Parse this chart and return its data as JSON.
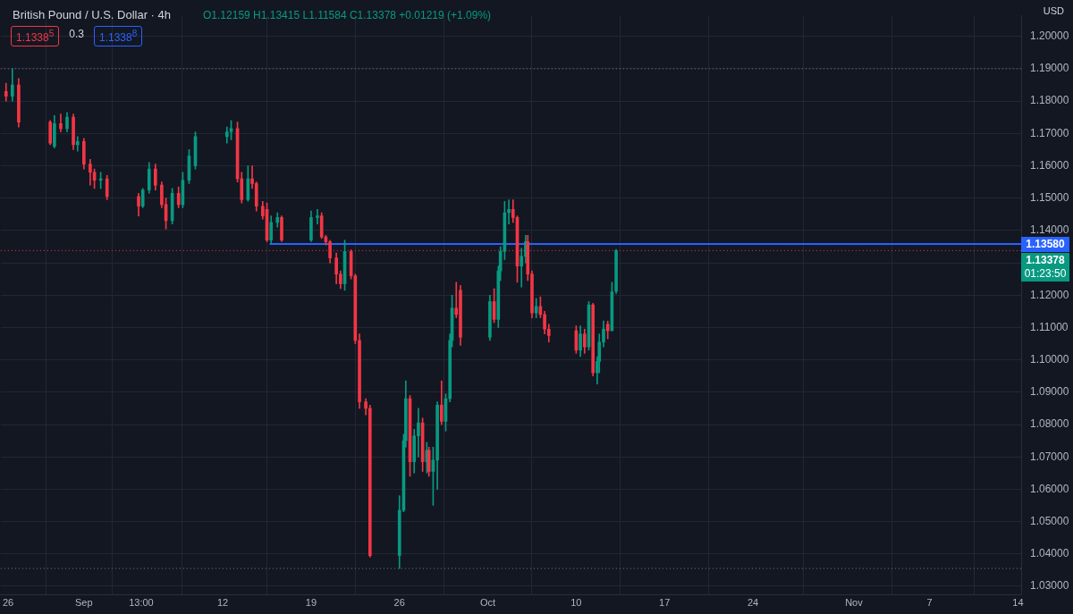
{
  "chart_data": {
    "type": "candlestick",
    "title": "British Pound / U.S. Dollar · 4h",
    "subtitle": "O1.12159 H1.13415 L1.11584 C1.13378 +0.01219 (+1.09%)",
    "ylabel": "USD",
    "x": [
      "--08-25T20:00",
      "--08-26T08:00",
      "--08-26T20:00",
      "--08-29T08:00",
      "--08-29T16:00",
      "--08-30T04:00",
      "--08-30T16:00",
      "--08-31T04:00",
      "--08-31T12:00",
      "--09-01T00:00",
      "--09-01T12:00",
      "--09-01T20:00",
      "--09-02T08:00",
      "--09-02T20:00",
      "--09-05T08:00",
      "--09-05T16:00",
      "--09-06T04:00",
      "--09-06T16:00",
      "--09-07T04:00",
      "--09-07T12:00",
      "--09-08T00:00",
      "--09-08T12:00",
      "--09-08T20:00",
      "--09-09T08:00",
      "--09-09T20:00",
      "--09-12T08:00",
      "--09-12T16:00",
      "--09-13T04:00",
      "--09-13T12:00",
      "--09-14T00:00",
      "--09-14T08:00",
      "--09-14T16:00",
      "--09-15T04:00",
      "--09-15T12:00",
      "--09-15T20:00",
      "--09-16T08:00",
      "--09-16T16:00",
      "--09-19T00:00",
      "--09-19T12:00",
      "--09-19T20:00",
      "--09-20T04:00",
      "--09-20T12:00",
      "--09-21T00:00",
      "--09-21T08:00",
      "--09-21T16:00",
      "--09-22T04:00",
      "--09-22T12:00",
      "--09-22T20:00",
      "--09-23T08:00",
      "--09-23T16:00",
      "--09-26T00:00",
      "--09-26T08:00",
      "--09-26T12:00",
      "--09-26T20:00",
      "--09-27T04:00",
      "--09-27T12:00",
      "--09-27T20:00",
      "--09-28T04:00",
      "--09-28T08:00",
      "--09-28T16:00",
      "--09-29T00:00",
      "--09-29T08:00",
      "--09-29T16:00",
      "--09-30T00:00",
      "--09-30T04:00",
      "--09-30T12:00",
      "--09-30T20:00",
      "--10-03T04:00",
      "--10-03T12:00",
      "--10-03T20:00",
      "--10-04T00:00",
      "--10-04T08:00",
      "--10-04T16:00",
      "--10-05T00:00",
      "--10-05T08:00",
      "--10-05T16:00",
      "--10-06T00:00",
      "--10-06T04:00",
      "--10-06T12:00",
      "--10-06T20:00",
      "--10-07T04:00",
      "--10-07T12:00",
      "--10-07T20:00",
      "--10-10T00:00",
      "--10-10T08:00",
      "--10-10T16:00",
      "--10-11T00:00",
      "--10-11T08:00",
      "--10-11T16:00",
      "--10-11T20:00",
      "--10-12T04:00",
      "--10-12T12:00",
      "--10-12T20:00",
      "--10-13T04:00"
    ],
    "ohlc": [
      [
        1.183,
        1.1855,
        1.18,
        1.1815
      ],
      [
        1.1815,
        1.19,
        1.18,
        1.185
      ],
      [
        1.185,
        1.187,
        1.172,
        1.1735
      ],
      [
        1.1735,
        1.174,
        1.1665,
        1.167
      ],
      [
        1.166,
        1.1755,
        1.1655,
        1.173
      ],
      [
        1.173,
        1.176,
        1.1705,
        1.1715
      ],
      [
        1.1715,
        1.1765,
        1.1705,
        1.175
      ],
      [
        1.175,
        1.176,
        1.165,
        1.1665
      ],
      [
        1.1665,
        1.169,
        1.1645,
        1.1675
      ],
      [
        1.1675,
        1.1685,
        1.159,
        1.1605
      ],
      [
        1.1605,
        1.162,
        1.154,
        1.158
      ],
      [
        1.158,
        1.159,
        1.153,
        1.1555
      ],
      [
        1.1555,
        1.158,
        1.153,
        1.156
      ],
      [
        1.156,
        1.157,
        1.1495,
        1.1505
      ],
      [
        1.1505,
        1.1515,
        1.1445,
        1.1475
      ],
      [
        1.1475,
        1.153,
        1.147,
        1.1525
      ],
      [
        1.1525,
        1.161,
        1.1515,
        1.159
      ],
      [
        1.159,
        1.1605,
        1.1525,
        1.154
      ],
      [
        1.154,
        1.155,
        1.147,
        1.148
      ],
      [
        1.148,
        1.15,
        1.1405,
        1.143
      ],
      [
        1.143,
        1.153,
        1.142,
        1.1515
      ],
      [
        1.1515,
        1.1535,
        1.147,
        1.148
      ],
      [
        1.148,
        1.158,
        1.147,
        1.1555
      ],
      [
        1.1555,
        1.165,
        1.1545,
        1.163
      ],
      [
        1.16,
        1.1705,
        1.159,
        1.169
      ],
      [
        1.169,
        1.172,
        1.167,
        1.1705
      ],
      [
        1.1705,
        1.174,
        1.168,
        1.1715
      ],
      [
        1.1715,
        1.1735,
        1.155,
        1.156
      ],
      [
        1.156,
        1.158,
        1.1485,
        1.1495
      ],
      [
        1.1495,
        1.16,
        1.149,
        1.156
      ],
      [
        1.156,
        1.16,
        1.153,
        1.1545
      ],
      [
        1.1545,
        1.155,
        1.146,
        1.1475
      ],
      [
        1.1475,
        1.149,
        1.1435,
        1.1445
      ],
      [
        1.1465,
        1.1485,
        1.1365,
        1.137
      ],
      [
        1.137,
        1.1445,
        1.136,
        1.1425
      ],
      [
        1.1425,
        1.1455,
        1.141,
        1.144
      ],
      [
        1.144,
        1.1445,
        1.1365,
        1.137
      ],
      [
        1.137,
        1.146,
        1.1365,
        1.144
      ],
      [
        1.144,
        1.1465,
        1.142,
        1.1445
      ],
      [
        1.1445,
        1.1455,
        1.1375,
        1.138
      ],
      [
        1.138,
        1.1385,
        1.1355,
        1.1365
      ],
      [
        1.1365,
        1.137,
        1.13,
        1.1315
      ],
      [
        1.1315,
        1.133,
        1.1235,
        1.1265
      ],
      [
        1.1265,
        1.1275,
        1.122,
        1.1235
      ],
      [
        1.1235,
        1.137,
        1.1215,
        1.1335
      ],
      [
        1.1335,
        1.134,
        1.125,
        1.126
      ],
      [
        1.126,
        1.1265,
        1.105,
        1.106
      ],
      [
        1.106,
        1.108,
        1.085,
        1.087
      ],
      [
        1.087,
        1.088,
        1.083,
        1.085
      ],
      [
        1.085,
        1.086,
        1.039,
        1.0395
      ],
      [
        1.0395,
        1.058,
        1.0355,
        1.0535
      ],
      [
        1.0535,
        1.077,
        1.053,
        1.075
      ],
      [
        1.075,
        1.0935,
        1.073,
        1.088
      ],
      [
        1.088,
        1.089,
        1.064,
        1.0685
      ],
      [
        1.0685,
        1.0785,
        1.065,
        1.0765
      ],
      [
        1.0765,
        1.085,
        1.07,
        1.0805
      ],
      [
        1.0805,
        1.082,
        1.0655,
        1.0685
      ],
      [
        1.0685,
        1.0745,
        1.065,
        1.072
      ],
      [
        1.072,
        1.073,
        1.064,
        1.0655
      ],
      [
        1.0655,
        1.073,
        1.055,
        1.069
      ],
      [
        1.069,
        1.087,
        1.06,
        1.086
      ],
      [
        1.086,
        1.0935,
        1.08,
        1.081
      ],
      [
        1.081,
        1.0895,
        1.078,
        1.088
      ],
      [
        1.088,
        1.108,
        1.087,
        1.106
      ],
      [
        1.106,
        1.12,
        1.104,
        1.116
      ],
      [
        1.116,
        1.124,
        1.113,
        1.114
      ],
      [
        1.1215,
        1.123,
        1.1045,
        1.107
      ],
      [
        1.107,
        1.12,
        1.106,
        1.118
      ],
      [
        1.118,
        1.122,
        1.1115,
        1.1125
      ],
      [
        1.1125,
        1.129,
        1.11,
        1.1275
      ],
      [
        1.1275,
        1.135,
        1.1245,
        1.1335
      ],
      [
        1.1335,
        1.149,
        1.131,
        1.1455
      ],
      [
        1.1455,
        1.1495,
        1.142,
        1.1465
      ],
      [
        1.1465,
        1.1495,
        1.1425,
        1.144
      ],
      [
        1.144,
        1.1445,
        1.124,
        1.129
      ],
      [
        1.129,
        1.1345,
        1.1225,
        1.132
      ],
      [
        1.132,
        1.1385,
        1.13,
        1.1365
      ],
      [
        1.1365,
        1.1385,
        1.1245,
        1.1265
      ],
      [
        1.1265,
        1.1275,
        1.113,
        1.1145
      ],
      [
        1.1145,
        1.119,
        1.113,
        1.1165
      ],
      [
        1.1165,
        1.1195,
        1.113,
        1.114
      ],
      [
        1.114,
        1.115,
        1.108,
        1.1095
      ],
      [
        1.1095,
        1.111,
        1.1055,
        1.1075
      ],
      [
        1.109,
        1.1105,
        1.102,
        1.103
      ],
      [
        1.103,
        1.1105,
        1.101,
        1.108
      ],
      [
        1.108,
        1.1095,
        1.102,
        1.104
      ],
      [
        1.104,
        1.118,
        1.103,
        1.117
      ],
      [
        1.117,
        1.1175,
        1.095,
        1.096
      ],
      [
        1.096,
        1.101,
        1.0925,
        1.0995
      ],
      [
        1.0995,
        1.108,
        1.096,
        1.1055
      ],
      [
        1.1055,
        1.112,
        1.104,
        1.1095
      ],
      [
        1.111,
        1.112,
        1.1065,
        1.109
      ],
      [
        1.109,
        1.124,
        1.109,
        1.121
      ],
      [
        1.1212,
        1.13415,
        1.1205,
        1.13378
      ]
    ],
    "colors": [
      "#f23645",
      "#089981",
      "#f23645",
      "#f23645",
      "#089981",
      "#f23645",
      "#089981",
      "#f23645",
      "#089981",
      "#f23645",
      "#f23645",
      "#f23645",
      "#089981",
      "#f23645",
      "#f23645",
      "#089981",
      "#089981",
      "#f23645",
      "#f23645",
      "#f23645",
      "#089981",
      "#f23645",
      "#089981",
      "#089981",
      "#089981",
      "#089981",
      "#089981",
      "#f23645",
      "#f23645",
      "#089981",
      "#f23645",
      "#f23645",
      "#f23645",
      "#f23645",
      "#089981",
      "#089981",
      "#f23645",
      "#089981",
      "#089981",
      "#f23645",
      "#f23645",
      "#f23645",
      "#f23645",
      "#f23645",
      "#089981",
      "#f23645",
      "#f23645",
      "#f23645",
      "#f23645",
      "#f23645",
      "#089981",
      "#089981",
      "#089981",
      "#f23645",
      "#089981",
      "#089981",
      "#f23645",
      "#089981",
      "#f23645",
      "#089981",
      "#089981",
      "#f23645",
      "#089981",
      "#089981",
      "#089981",
      "#f23645",
      "#f23645",
      "#089981",
      "#f23645",
      "#089981",
      "#089981",
      "#089981",
      "#089981",
      "#f23645",
      "#f23645",
      "#089981",
      "#089981",
      "#f23645",
      "#f23645",
      "#089981",
      "#f23645",
      "#f23645",
      "#f23645",
      "#f23645",
      "#089981",
      "#f23645",
      "#089981",
      "#f23645",
      "#089981",
      "#089981",
      "#089981",
      "#f23645",
      "#089981",
      "#089981"
    ],
    "series": [
      {
        "type": "line",
        "color": "#2962ff",
        "x": [
          "--09-15T17:00",
          "--11-14T06:00"
        ],
        "values": [
          1.1358,
          1.1358
        ]
      }
    ],
    "xlim": [
      "--08-25T10:00",
      "--11-14T06:00"
    ],
    "xticks": [
      {
        "value": "--08-26",
        "label": "26"
      },
      {
        "value": "--09-01",
        "label": "Sep"
      },
      {
        "value": "--09-05T13:00",
        "label": "13:00"
      },
      {
        "value": "--09-12",
        "label": "12"
      },
      {
        "value": "--09-19",
        "label": "19"
      },
      {
        "value": "--09-26",
        "label": "26"
      },
      {
        "value": "--10-03",
        "label": "Oct"
      },
      {
        "value": "--10-10",
        "label": "10"
      },
      {
        "value": "--10-17",
        "label": "17"
      },
      {
        "value": "--10-24",
        "label": "24"
      },
      {
        "value": "--11-01",
        "label": "Nov"
      },
      {
        "value": "--11-07",
        "label": "7"
      },
      {
        "value": "--11-14",
        "label": "14"
      }
    ],
    "ylim": [
      1.0275,
      1.2065
    ],
    "yticks": [
      {
        "value": 1.03,
        "label": "1.03000"
      },
      {
        "value": 1.04,
        "label": "1.04000"
      },
      {
        "value": 1.05,
        "label": "1.05000"
      },
      {
        "value": 1.06,
        "label": "1.06000"
      },
      {
        "value": 1.07,
        "label": "1.07000"
      },
      {
        "value": 1.08,
        "label": "1.08000"
      },
      {
        "value": 1.09,
        "label": "1.09000"
      },
      {
        "value": 1.1,
        "label": "1.10000"
      },
      {
        "value": 1.11,
        "label": "1.11000"
      },
      {
        "value": 1.12,
        "label": "1.12000"
      },
      {
        "value": 1.13,
        "label": null
      },
      {
        "value": 1.14,
        "label": "1.14000"
      },
      {
        "value": 1.15,
        "label": "1.15000"
      },
      {
        "value": 1.16,
        "label": "1.16000"
      },
      {
        "value": 1.17,
        "label": "1.17000"
      },
      {
        "value": 1.18,
        "label": "1.18000"
      },
      {
        "value": 1.19,
        "label": "1.19000"
      },
      {
        "value": 1.2,
        "label": "1.20000"
      }
    ],
    "ref_lines": [
      {
        "axis": "y",
        "value": 1.19,
        "color": "#787b86",
        "line_style": "dotted"
      },
      {
        "axis": "y",
        "value": 1.0355,
        "color": "#787b86",
        "line_style": "dotted"
      },
      {
        "axis": "y",
        "value": 1.13378,
        "label": "1.13378",
        "color": "#f23645",
        "line_style": "dotted"
      }
    ],
    "annotations": [
      "1.1338$^{5}$",
      "0.3",
      "1.1338$^{8}$",
      {
        "text": "1.13580",
        "x": "--11-14T06:00",
        "y": 1.1358
      },
      {
        "text": "01:23:50",
        "x": "--11-14T06:00",
        "y": 1.13378
      }
    ],
    "grid": true
  }
}
